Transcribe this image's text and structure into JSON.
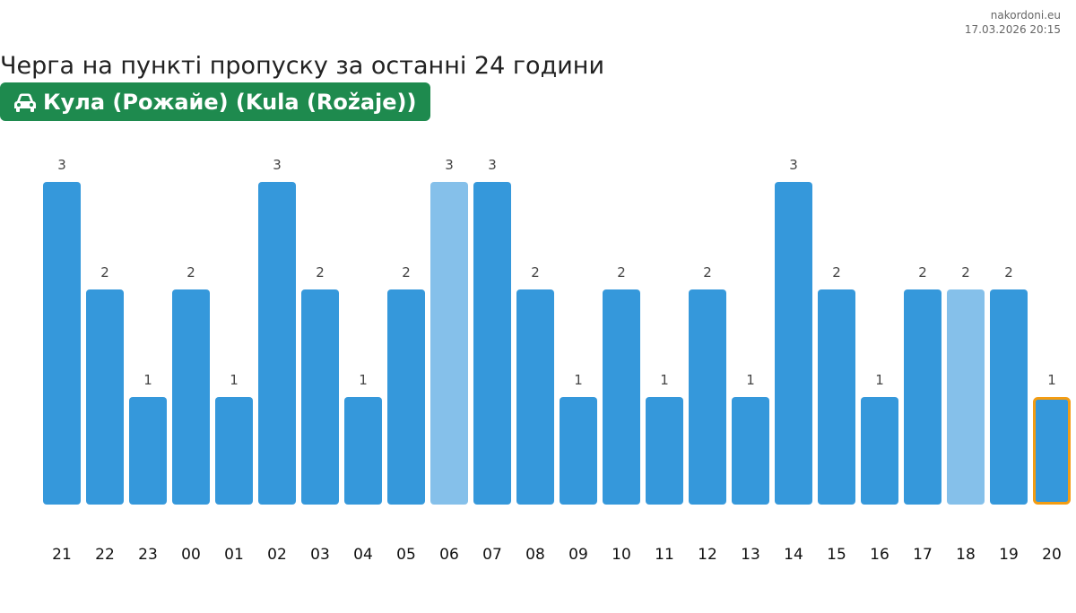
{
  "site": {
    "name": "nakordoni.eu",
    "timestamp": "17.03.2026 20:15"
  },
  "header": {
    "title": "Черга на пункті пропуску за останні 24 години",
    "checkpoint": "Кула (Рожайе) (Kula (Rožaje))",
    "checkpoint_icon": "car-icon"
  },
  "colors": {
    "bar": "#3598db",
    "bar_light": "#85c0ea",
    "highlight_border": "#f39c12",
    "badge": "#1e8a4e"
  },
  "chart_data": {
    "type": "bar",
    "categories": [
      "21",
      "22",
      "23",
      "00",
      "01",
      "02",
      "03",
      "04",
      "05",
      "06",
      "07",
      "08",
      "09",
      "10",
      "11",
      "12",
      "13",
      "14",
      "15",
      "16",
      "17",
      "18",
      "19",
      "20"
    ],
    "values": [
      3,
      2,
      1,
      2,
      1,
      3,
      2,
      1,
      2,
      3,
      3,
      2,
      1,
      2,
      1,
      2,
      1,
      3,
      2,
      1,
      2,
      2,
      2,
      1
    ],
    "light_bars": [
      "06",
      "18"
    ],
    "highlighted_bar": "20",
    "ylim": [
      0,
      3
    ],
    "grid": false,
    "title": "",
    "xlabel": "",
    "ylabel": ""
  }
}
